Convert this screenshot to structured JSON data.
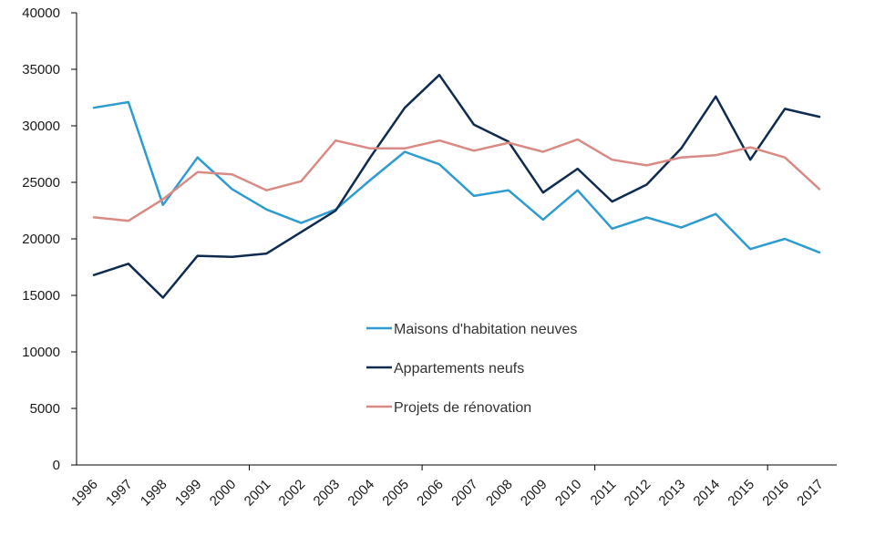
{
  "chart_data": {
    "type": "line",
    "title": "",
    "xlabel": "",
    "ylabel": "",
    "ylim": [
      0,
      40000
    ],
    "yticks": [
      "0",
      "5000",
      "10000",
      "15000",
      "20000",
      "25000",
      "30000",
      "35000",
      "40000"
    ],
    "categories": [
      "1996",
      "1997",
      "1998",
      "1999",
      "2000",
      "2001",
      "2002",
      "2003",
      "2004",
      "2005",
      "2006",
      "2007",
      "2008",
      "2009",
      "2010",
      "2011",
      "2012",
      "2013",
      "2014",
      "2015",
      "2016",
      "2017"
    ],
    "grid": false,
    "legend_position": "center",
    "series": [
      {
        "name": "Maisons d'habitation neuves",
        "color": "#2e9bd1",
        "values": [
          31600,
          32100,
          23000,
          27200,
          24400,
          22600,
          21400,
          22600,
          25200,
          27700,
          26600,
          23800,
          24300,
          21700,
          24300,
          20900,
          21900,
          21000,
          22200,
          19100,
          20000,
          18800
        ]
      },
      {
        "name": "Appartements neufs",
        "color": "#0f2b4f",
        "values": [
          16800,
          17800,
          14800,
          18500,
          18400,
          18700,
          20600,
          22500,
          27200,
          31600,
          34500,
          30100,
          28600,
          24100,
          26200,
          23300,
          24800,
          28000,
          32600,
          27000,
          31500,
          30800
        ]
      },
      {
        "name": "Projets de rénovation",
        "color": "#d98a85",
        "values": [
          21900,
          21600,
          23500,
          25900,
          25700,
          24300,
          25100,
          28700,
          28000,
          28000,
          28700,
          27800,
          28500,
          27700,
          28800,
          27000,
          26500,
          27200,
          27400,
          28100,
          27200,
          24400
        ]
      }
    ]
  }
}
